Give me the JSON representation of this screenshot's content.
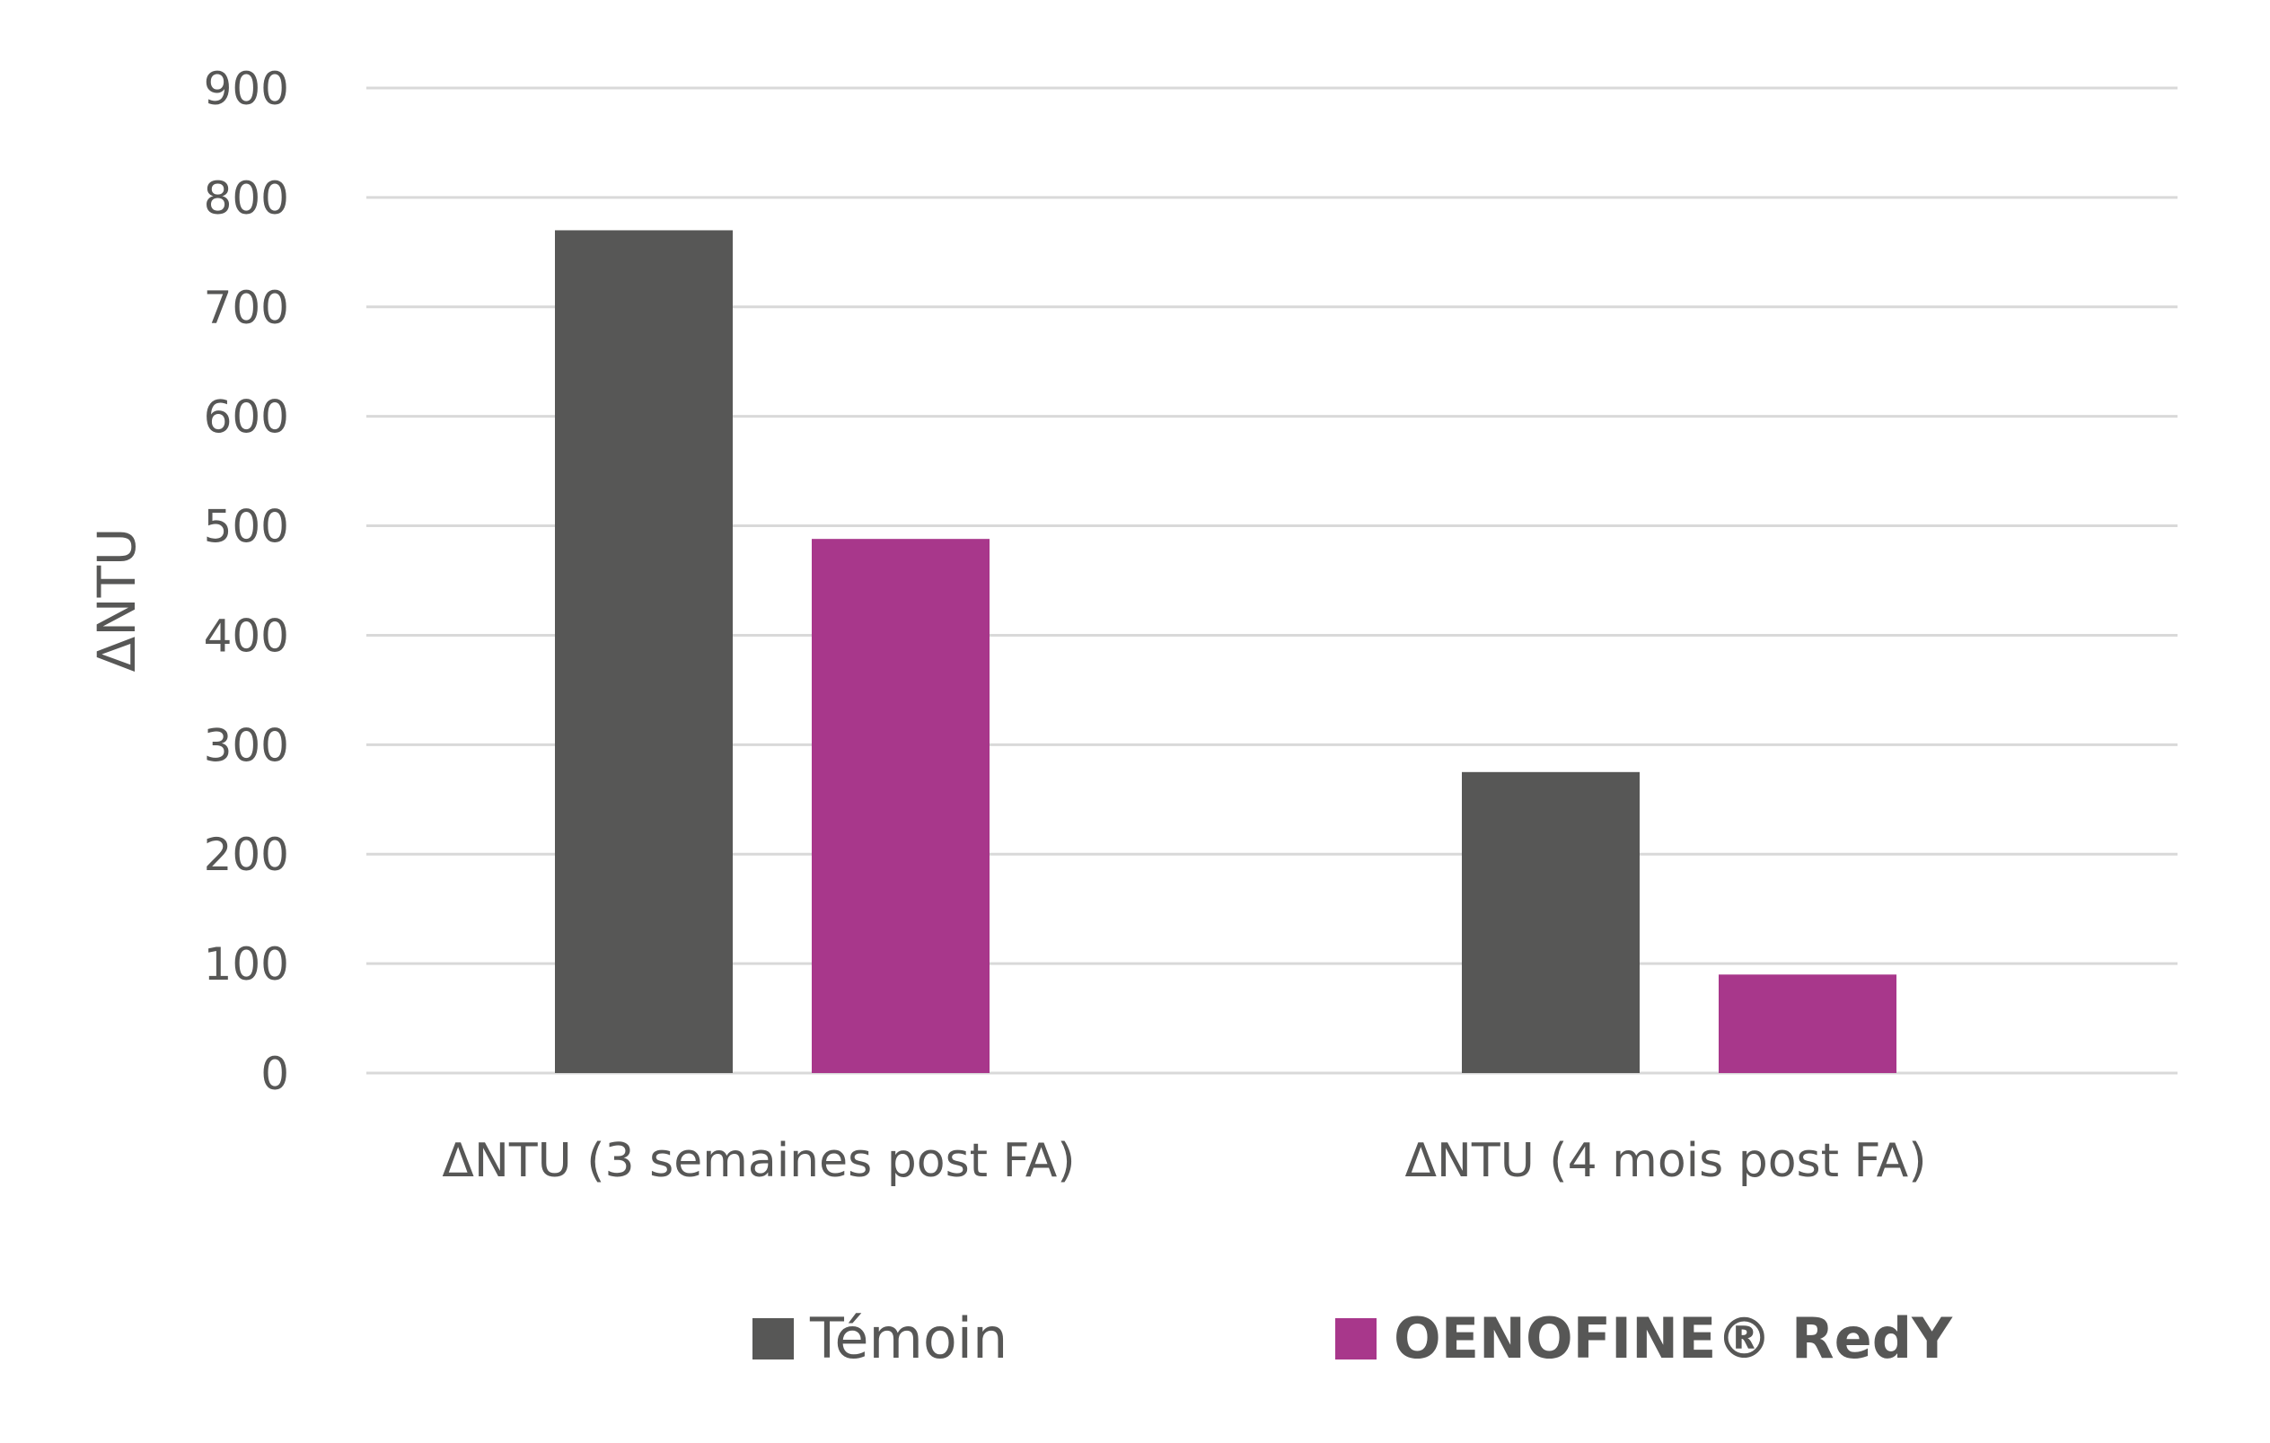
{
  "chart_data": {
    "type": "bar",
    "categories": [
      "ΔNTU (3 semaines post FA)",
      "ΔNTU (4 mois post FA)"
    ],
    "series": [
      {
        "name": "Témoin",
        "values": [
          770,
          275
        ],
        "color": "#575756"
      },
      {
        "name": "OENOFINE® RedY",
        "values": [
          488,
          90
        ],
        "color": "#a8378b"
      }
    ],
    "ylabel": "ΔNTU",
    "ylim": [
      0,
      900
    ],
    "yticks": [
      0,
      100,
      200,
      300,
      400,
      500,
      600,
      700,
      800,
      900
    ],
    "grid": true,
    "legend": "bottom"
  }
}
